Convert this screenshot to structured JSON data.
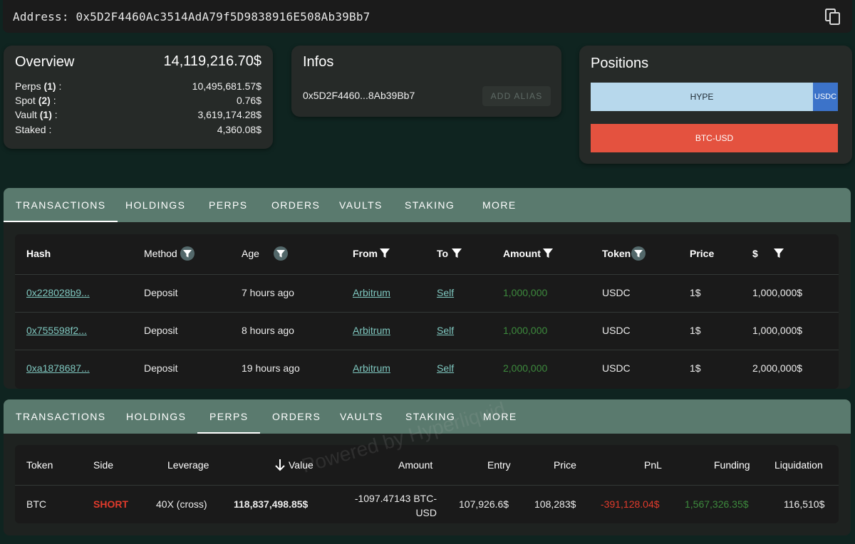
{
  "address_bar": {
    "label": "Address:",
    "address": "0x5D2F4460Ac3514AdA79f5D9838916E508Ab39Bb7"
  },
  "overview": {
    "title": "Overview",
    "total": "14,119,216.70$",
    "rows": [
      {
        "label": "Perps",
        "count": "(1)",
        "suffix": " :",
        "value": "10,495,681.57$"
      },
      {
        "label": "Spot",
        "count": "(2)",
        "suffix": " :",
        "value": "0.76$"
      },
      {
        "label": "Vault",
        "count": "(1)",
        "suffix": " :",
        "value": "3,619,174.28$"
      },
      {
        "label": "Staked",
        "count": "",
        "suffix": " :",
        "value": "4,360.08$"
      }
    ]
  },
  "infos": {
    "title": "Infos",
    "short_address": "0x5D2F4460...8Ab39Bb7",
    "add_alias": "ADD ALIAS"
  },
  "positions": {
    "title": "Positions",
    "hype": "HYPE",
    "usdc": "USDC",
    "btc": "BTC-USD",
    "colors": {
      "hype": "#b7d8ec",
      "usdc": "#3c73c9",
      "btc": "#e4523f"
    }
  },
  "tabs": [
    "TRANSACTIONS",
    "HOLDINGS",
    "PERPS",
    "ORDERS",
    "VAULTS",
    "STAKING",
    "MORE"
  ],
  "transactions": {
    "headers": {
      "hash": "Hash",
      "method": "Method",
      "age": "Age",
      "from": "From",
      "to": "To",
      "amount": "Amount",
      "token": "Token",
      "price": "Price",
      "usd": "$"
    },
    "rows": [
      {
        "hash": "0x228028b9...",
        "method": "Deposit",
        "age": "7 hours ago",
        "from": "Arbitrum",
        "to": "Self",
        "amount": "1,000,000",
        "token": "USDC",
        "price": "1$",
        "usd": "1,000,000$"
      },
      {
        "hash": "0x755598f2...",
        "method": "Deposit",
        "age": "8 hours ago",
        "from": "Arbitrum",
        "to": "Self",
        "amount": "1,000,000",
        "token": "USDC",
        "price": "1$",
        "usd": "1,000,000$"
      },
      {
        "hash": "0xa1878687...",
        "method": "Deposit",
        "age": "19 hours ago",
        "from": "Arbitrum",
        "to": "Self",
        "amount": "2,000,000",
        "token": "USDC",
        "price": "1$",
        "usd": "2,000,000$"
      }
    ]
  },
  "perps": {
    "headers": {
      "token": "Token",
      "side": "Side",
      "leverage": "Leverage",
      "value": "Value",
      "amount": "Amount",
      "entry": "Entry",
      "price": "Price",
      "pnl": "PnL",
      "funding": "Funding",
      "liquidation": "Liquidation"
    },
    "rows": [
      {
        "token": "BTC",
        "side": "SHORT",
        "leverage": "40X (cross)",
        "value": "118,837,498.85$",
        "amount_line1": "-1097.47143 BTC-",
        "amount_line2": "USD",
        "entry": "107,926.6$",
        "price": "108,283$",
        "pnl": "-391,128.04$",
        "funding": "1,567,326.35$",
        "liquidation": "116,510$"
      }
    ]
  },
  "watermark": "Powered by Hyperliquid"
}
